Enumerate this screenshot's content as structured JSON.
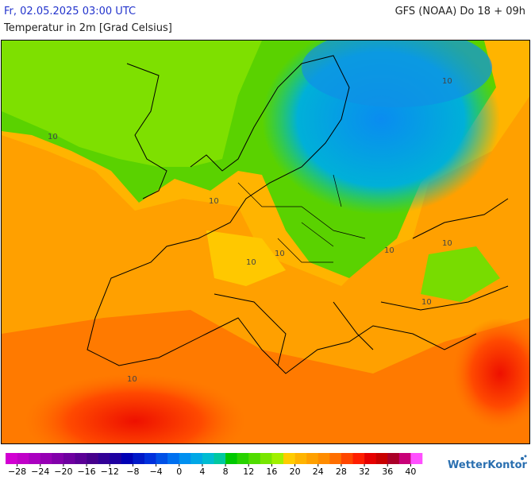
{
  "header": {
    "datetime": "Fr, 02.05.2025 03:00 UTC",
    "model": "GFS (NOAA) Do 18 + 09h",
    "title": "Temperatur in 2m [Grad Celsius]"
  },
  "map": {
    "contour_labels": [
      "10",
      "10",
      "10",
      "10",
      "10",
      "10",
      "10",
      "10",
      "10"
    ]
  },
  "legend": {
    "lim": [
      -30,
      42
    ],
    "colors": [
      "#d200d2",
      "#c000c8",
      "#aa00c0",
      "#9600b4",
      "#8200aa",
      "#6e00a0",
      "#5a0096",
      "#46008c",
      "#320096",
      "#1e00a0",
      "#0000b4",
      "#0018c8",
      "#0030dc",
      "#0050e6",
      "#0070f0",
      "#0090f0",
      "#00a8e6",
      "#00bcd2",
      "#00c8a0",
      "#00c800",
      "#28d200",
      "#50dc00",
      "#78e600",
      "#a0f000",
      "#ffcc00",
      "#ffb400",
      "#ffa000",
      "#ff8c00",
      "#ff6e00",
      "#ff4600",
      "#ff1e00",
      "#e60000",
      "#c80000",
      "#aa0028",
      "#c80078",
      "#ff50ff"
    ],
    "ticks": [
      {
        "value": -28,
        "label": "−28"
      },
      {
        "value": -24,
        "label": "−24"
      },
      {
        "value": -20,
        "label": "−20"
      },
      {
        "value": -16,
        "label": "−16"
      },
      {
        "value": -12,
        "label": "−12"
      },
      {
        "value": -8,
        "label": "−8"
      },
      {
        "value": -4,
        "label": "−4"
      },
      0,
      4,
      8,
      12,
      16,
      20,
      24,
      28,
      32,
      36,
      40
    ]
  },
  "brand": "WetterKontor"
}
